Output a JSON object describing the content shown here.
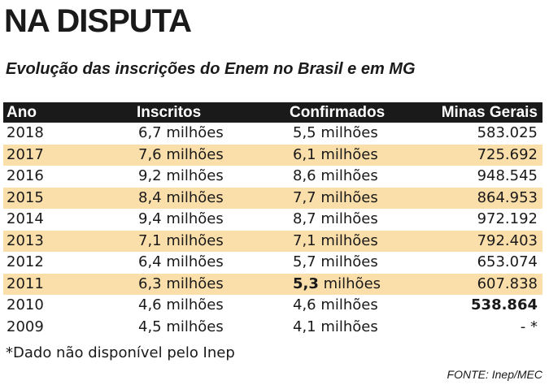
{
  "title": "NA DISPUTA",
  "subtitle": "Evolução das inscrições do Enem no Brasil e em MG",
  "headers": {
    "ano": "Ano",
    "inscritos": "Inscritos",
    "confirmados": "Confirmados",
    "mg": "Minas Gerais"
  },
  "rows": [
    {
      "ano": "2018",
      "inscritos": "6,7 milhões",
      "confirmados": "5,5 milhões",
      "mg": "583.025"
    },
    {
      "ano": "2017",
      "inscritos": "7,6 milhões",
      "confirmados": "6,1 milhões",
      "mg": "725.692"
    },
    {
      "ano": "2016",
      "inscritos": "9,2 milhões",
      "confirmados": "8,6 milhões",
      "mg": "948.545"
    },
    {
      "ano": "2015",
      "inscritos": "8,4 milhões",
      "confirmados": "7,7 milhões",
      "mg": "864.953"
    },
    {
      "ano": "2014",
      "inscritos": "9,4 milhões",
      "confirmados": "8,7 milhões",
      "mg": "972.192"
    },
    {
      "ano": "2013",
      "inscritos": "7,1 milhões",
      "confirmados": "7,1 milhões",
      "mg": "792.403"
    },
    {
      "ano": "2012",
      "inscritos": "6,4 milhões",
      "confirmados": "5,7 milhões",
      "mg": "653.074"
    },
    {
      "ano": "2011",
      "inscritos": "6,3 milhões",
      "confirmados_bold": "5,3",
      "confirmados_rest": " milhões",
      "mg": "607.838"
    },
    {
      "ano": "2010",
      "inscritos": "4,6 milhões",
      "confirmados": "4,6 milhões",
      "mg": "538.864"
    },
    {
      "ano": "2009",
      "inscritos": "4,5 milhões",
      "confirmados": "4,1 milhões",
      "mg": "- *"
    }
  ],
  "note": "*Dado não disponível pelo Inep",
  "source": "FONTE: Inep/MEC",
  "colors": {
    "header_bg": "#1a1a1a",
    "stripe": "#fbdfaa"
  }
}
